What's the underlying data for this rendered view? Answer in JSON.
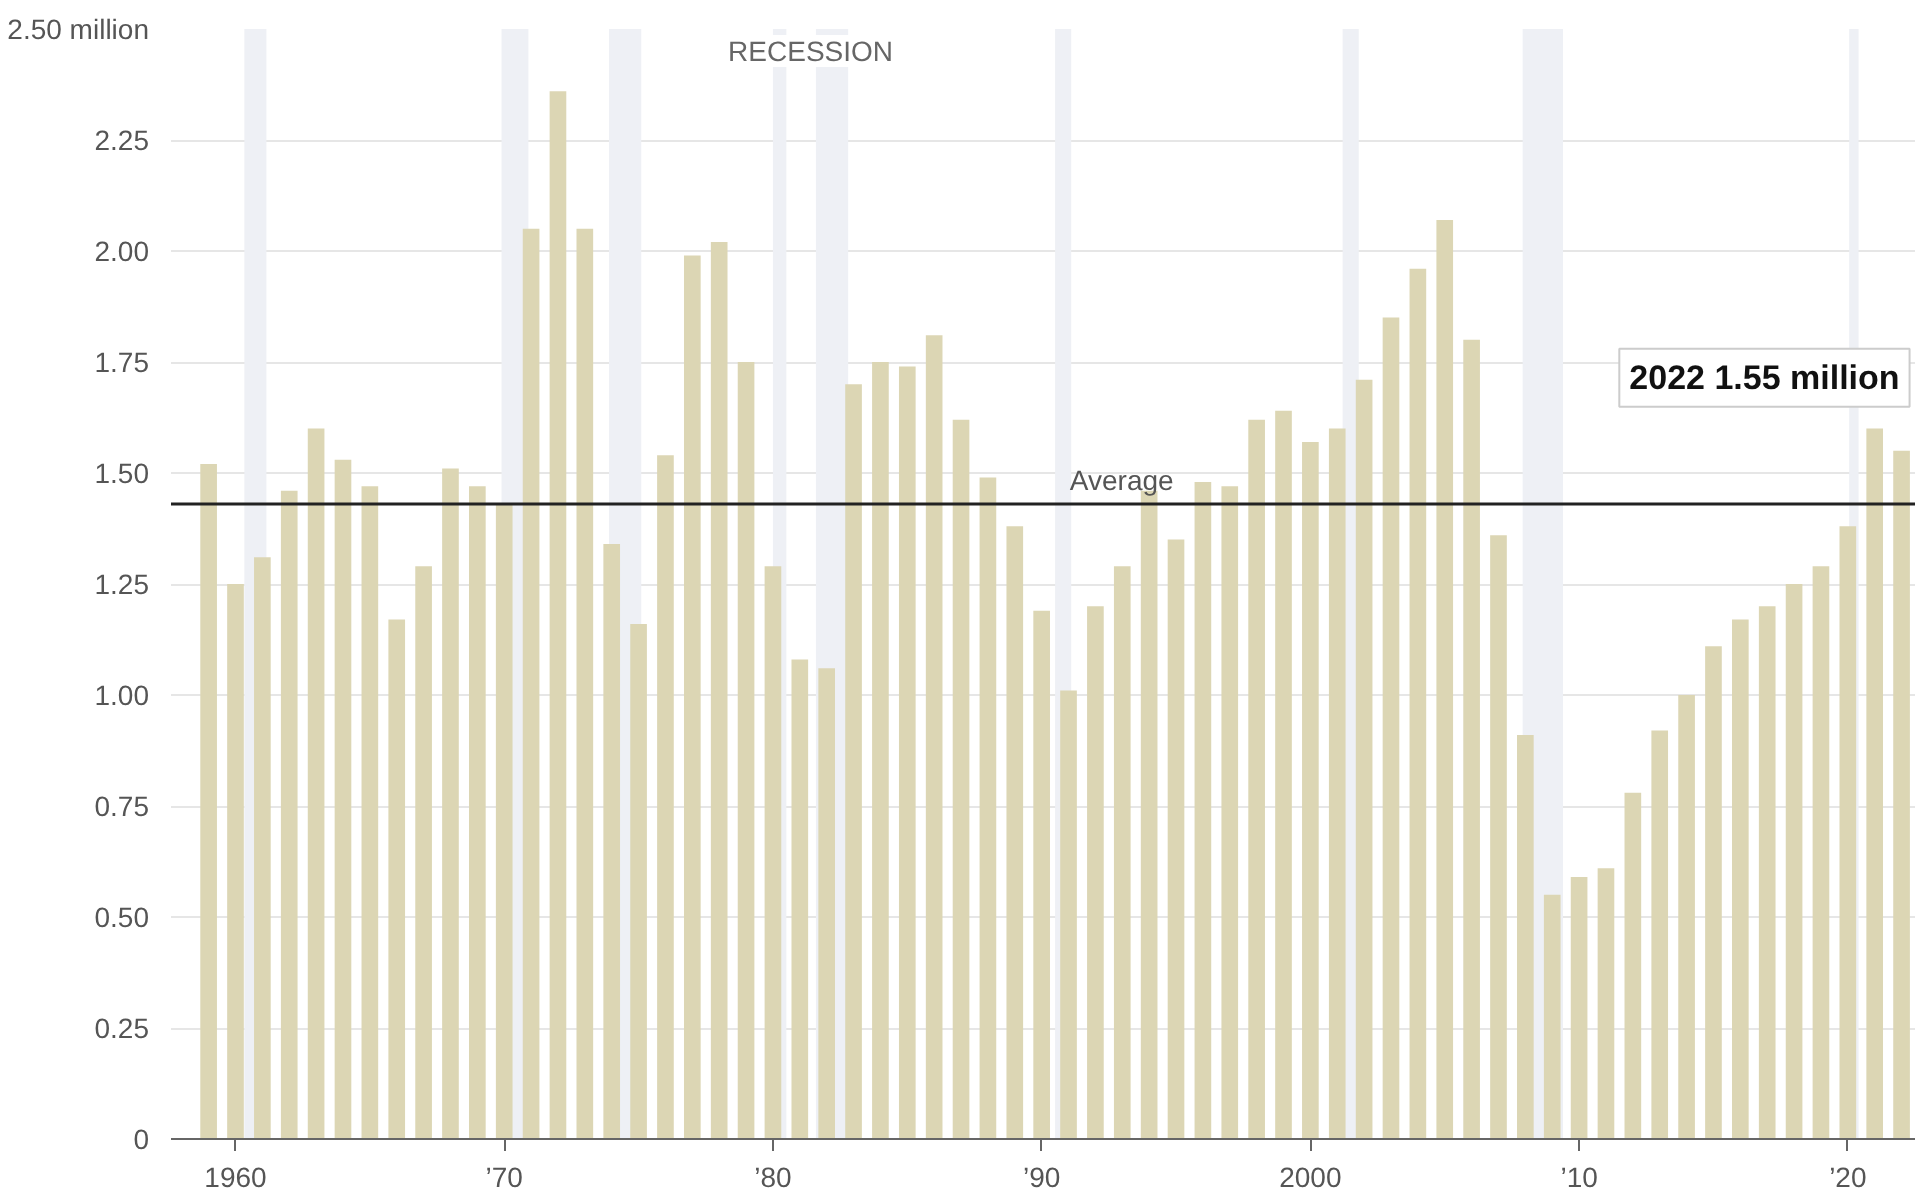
{
  "chart_data": {
    "type": "bar",
    "x": [
      1959,
      1960,
      1961,
      1962,
      1963,
      1964,
      1965,
      1966,
      1967,
      1968,
      1969,
      1970,
      1971,
      1972,
      1973,
      1974,
      1975,
      1976,
      1977,
      1978,
      1979,
      1980,
      1981,
      1982,
      1983,
      1984,
      1985,
      1986,
      1987,
      1988,
      1989,
      1990,
      1991,
      1992,
      1993,
      1994,
      1995,
      1996,
      1997,
      1998,
      1999,
      2000,
      2001,
      2002,
      2003,
      2004,
      2005,
      2006,
      2007,
      2008,
      2009,
      2010,
      2011,
      2012,
      2013,
      2014,
      2015,
      2016,
      2017,
      2018,
      2019,
      2020,
      2021,
      2022
    ],
    "values": [
      1.52,
      1.25,
      1.31,
      1.46,
      1.6,
      1.53,
      1.47,
      1.17,
      1.29,
      1.51,
      1.47,
      1.43,
      2.05,
      2.36,
      2.05,
      1.34,
      1.16,
      1.54,
      1.99,
      2.02,
      1.75,
      1.29,
      1.08,
      1.06,
      1.7,
      1.75,
      1.74,
      1.81,
      1.62,
      1.49,
      1.38,
      1.19,
      1.01,
      1.2,
      1.29,
      1.46,
      1.35,
      1.48,
      1.47,
      1.62,
      1.64,
      1.57,
      1.6,
      1.71,
      1.85,
      1.96,
      2.07,
      1.8,
      1.36,
      0.91,
      0.55,
      0.59,
      0.61,
      0.78,
      0.92,
      1.0,
      1.11,
      1.17,
      1.2,
      1.25,
      1.29,
      1.38,
      1.6,
      1.55
    ],
    "color": "#dcd6b4",
    "xlim": [
      1957.6,
      2022.5
    ],
    "xticks": [
      1960,
      {
        "value": 1970,
        "label": "’70"
      },
      {
        "value": 1980,
        "label": "’80"
      },
      {
        "value": 1990,
        "label": "’90"
      },
      2000,
      {
        "value": 2010,
        "label": "’10"
      },
      {
        "value": 2020,
        "label": "’20"
      }
    ],
    "ylim": [
      0,
      2.5
    ],
    "yticks": [
      0,
      {
        "value": 0.25,
        "label": "0.25"
      },
      {
        "value": 0.5,
        "label": "0.50"
      },
      {
        "value": 0.75,
        "label": "0.75"
      },
      {
        "value": 1,
        "label": "1.00"
      },
      {
        "value": 1.25,
        "label": "1.25"
      },
      {
        "value": 1.5,
        "label": "1.50"
      },
      {
        "value": 1.75,
        "label": "1.75"
      },
      {
        "value": 2,
        "label": "2.00"
      },
      {
        "value": 2.25,
        "label": "2.25"
      },
      {
        "value": 2.5,
        "label": "2.50 million"
      }
    ],
    "grid": "y",
    "ref_lines": [
      {
        "axis": "y",
        "value": 1.43,
        "label": "Average",
        "color": "#222222"
      }
    ],
    "bands": [
      {
        "axis": "x",
        "from": 1960.33,
        "to": 1961.15,
        "color": "#eef0f5"
      },
      {
        "axis": "x",
        "from": 1969.9,
        "to": 1970.9,
        "color": "#eef0f5"
      },
      {
        "axis": "x",
        "from": 1973.9,
        "to": 1975.1,
        "color": "#eef0f5"
      },
      {
        "axis": "x",
        "from": 1980.0,
        "to": 1980.5,
        "color": "#eef0f5"
      },
      {
        "axis": "x",
        "from": 1981.6,
        "to": 1982.8,
        "color": "#eef0f5"
      },
      {
        "axis": "x",
        "from": 1990.5,
        "to": 1991.1,
        "color": "#eef0f5"
      },
      {
        "axis": "x",
        "from": 2001.2,
        "to": 2001.8,
        "color": "#eef0f5"
      },
      {
        "axis": "x",
        "from": 2007.9,
        "to": 2009.4,
        "color": "#eef0f5"
      },
      {
        "axis": "x",
        "from": 2020.05,
        "to": 2020.4,
        "color": "#eef0f5"
      }
    ],
    "annotations": [
      {
        "text": "RECESSION",
        "x": 1981.4,
        "y": 2.5
      },
      {
        "text": "2022 1.55 million",
        "x": 2022,
        "y": 1.55
      }
    ]
  }
}
